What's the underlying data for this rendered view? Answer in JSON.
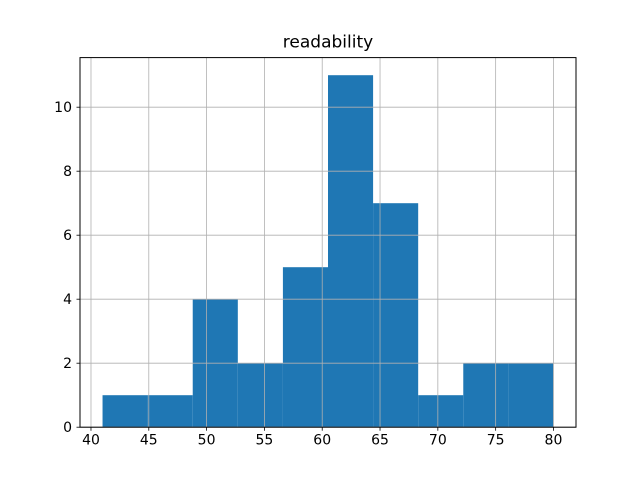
{
  "chart_data": {
    "type": "bar",
    "subtype": "histogram",
    "title": "readability",
    "xlabel": "",
    "ylabel": "",
    "bin_edges": [
      41,
      44.9,
      48.8,
      52.7,
      56.6,
      60.5,
      64.4,
      68.3,
      72.2,
      76.1,
      80
    ],
    "counts": [
      1,
      1,
      4,
      2,
      5,
      11,
      7,
      1,
      2,
      2
    ],
    "xlim": [
      39.05,
      81.95
    ],
    "ylim": [
      0,
      11.55
    ],
    "x_ticks": [
      40,
      45,
      50,
      55,
      60,
      65,
      70,
      75,
      80
    ],
    "y_ticks": [
      0,
      2,
      4,
      6,
      8,
      10
    ],
    "grid": true,
    "grid_over_bars": true,
    "legend": "none",
    "colors": {
      "bar": "#1f77b4",
      "grid": "#b0b0b0",
      "spine": "#000000",
      "text": "#000000",
      "background": "#ffffff"
    }
  }
}
